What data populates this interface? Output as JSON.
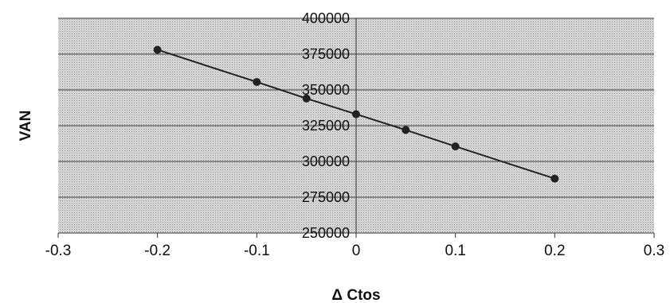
{
  "chart_data": {
    "type": "line",
    "xlabel": "Δ Ctos",
    "ylabel": "VAN",
    "xlim": [
      -0.3,
      0.3
    ],
    "ylim": [
      250000,
      400000
    ],
    "x_ticks": [
      -0.3,
      -0.2,
      -0.1,
      0,
      0.1,
      0.2,
      0.3
    ],
    "x_tick_labels": [
      "-0.3",
      "-0.2",
      "-0.1",
      "0",
      "0.1",
      "0.2",
      "0.3"
    ],
    "y_ticks": [
      250000,
      275000,
      300000,
      325000,
      350000,
      375000,
      400000
    ],
    "y_tick_labels": [
      "250000",
      "275000",
      "300000",
      "325000",
      "350000",
      "375000",
      "400000"
    ],
    "grid": true,
    "legend": "none",
    "colors": {
      "line": "#222222",
      "marker": "#222222",
      "plot_background": "#d6d6d6",
      "gridline": "#333333"
    },
    "series": [
      {
        "x": [
          -0.2,
          -0.1,
          -0.05,
          0,
          0.05,
          0.1,
          0.2
        ],
        "y": [
          378000,
          355500,
          344000,
          333000,
          322000,
          310500,
          288000
        ]
      }
    ]
  }
}
